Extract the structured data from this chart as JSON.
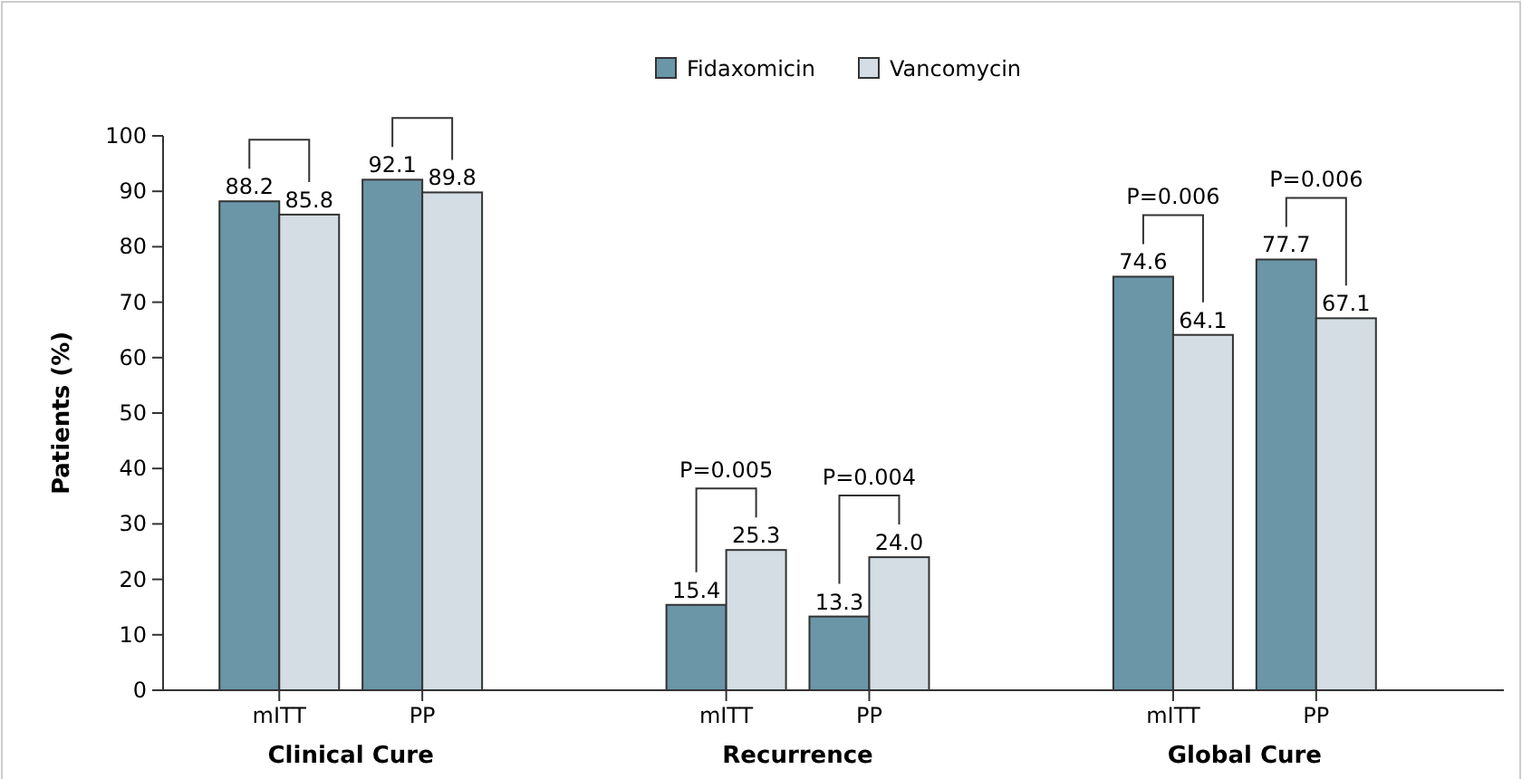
{
  "chart_data": {
    "type": "bar",
    "ylabel": "Patients (%)",
    "categories": [
      "mITT",
      "PP",
      "mITT",
      "PP",
      "mITT",
      "PP"
    ],
    "series": [
      {
        "name": "Fidaxomicin",
        "color": "#6a96a8",
        "values": [
          88.2,
          92.1,
          15.4,
          13.3,
          74.6,
          77.7
        ]
      },
      {
        "name": "Vancomycin",
        "color": "#d3dde3",
        "values": [
          85.8,
          89.8,
          25.3,
          24.0,
          64.1,
          67.1
        ]
      }
    ],
    "value_labels": [
      [
        "88.2",
        "92.1",
        "15.4",
        "13.3",
        "74.6",
        "77.7"
      ],
      [
        "85.8",
        "89.8",
        "25.3",
        "24.0",
        "64.1",
        "67.1"
      ]
    ],
    "ylim": [
      0,
      100
    ],
    "yticks": [
      0,
      10,
      20,
      30,
      40,
      50,
      60,
      70,
      80,
      90,
      100
    ],
    "grid": false,
    "legend": "top",
    "annotations": [
      "Clinical Cure",
      "Recurrence",
      "Global Cure",
      "P=0.005",
      "P=0.004",
      "P=0.006",
      "P=0.006"
    ]
  }
}
